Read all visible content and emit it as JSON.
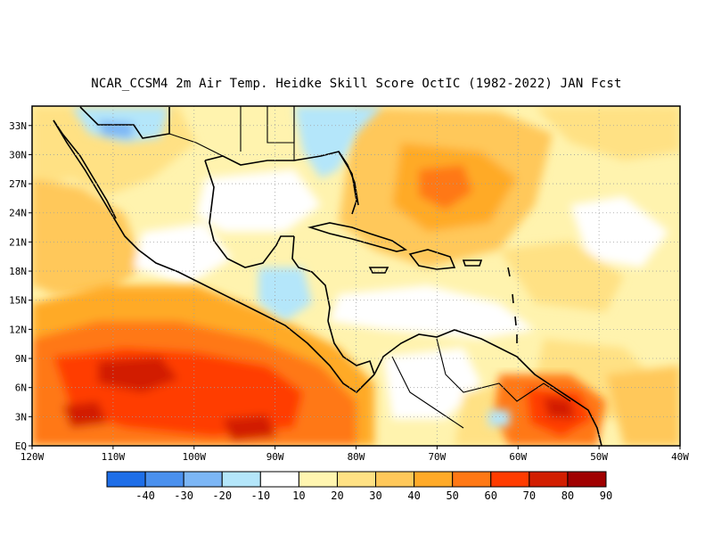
{
  "title": "NCAR_CCSM4  2m Air Temp. Heidke Skill Score OctIC (1982-2022) JAN Fcst",
  "axes": {
    "lat_labels": [
      "EQ",
      "3N",
      "6N",
      "9N",
      "12N",
      "15N",
      "18N",
      "21N",
      "24N",
      "27N",
      "30N",
      "33N"
    ],
    "lat_values": [
      0,
      3,
      6,
      9,
      12,
      15,
      18,
      21,
      24,
      27,
      30,
      33
    ],
    "lon_labels": [
      "120W",
      "110W",
      "100W",
      "90W",
      "80W",
      "70W",
      "60W",
      "50W",
      "40W"
    ],
    "lon_values": [
      -120,
      -110,
      -100,
      -90,
      -80,
      -70,
      -60,
      -50,
      -40
    ],
    "lat_range": [
      0,
      35
    ],
    "lon_range": [
      -120,
      -40
    ],
    "grid": "dotted"
  },
  "colorbar": {
    "boundaries": [
      "-40",
      "-30",
      "-20",
      "-10",
      "10",
      "20",
      "30",
      "40",
      "50",
      "60",
      "70",
      "80",
      "90"
    ],
    "colors": [
      "#1e6ee8",
      "#4a90ee",
      "#7cb6f5",
      "#b4e6fa",
      "#ffffff",
      "#fff5b0",
      "#ffe184",
      "#ffc85a",
      "#ffaa28",
      "#ff7814",
      "#ff3c00",
      "#d21e00",
      "#a00000"
    ]
  },
  "field": {
    "variable": "Heidke Skill Score",
    "regions": [
      {
        "name": "eastern-pacific-high-skill",
        "level": 70
      },
      {
        "name": "eastern-pacific-moderate",
        "level": 50
      },
      {
        "name": "caribbean-sargasso",
        "level": 40
      },
      {
        "name": "southeast-us-negative",
        "level": -20
      },
      {
        "name": "north-mexico-negative",
        "level": -30
      },
      {
        "name": "guiana-high-skill",
        "level": 70
      }
    ]
  }
}
